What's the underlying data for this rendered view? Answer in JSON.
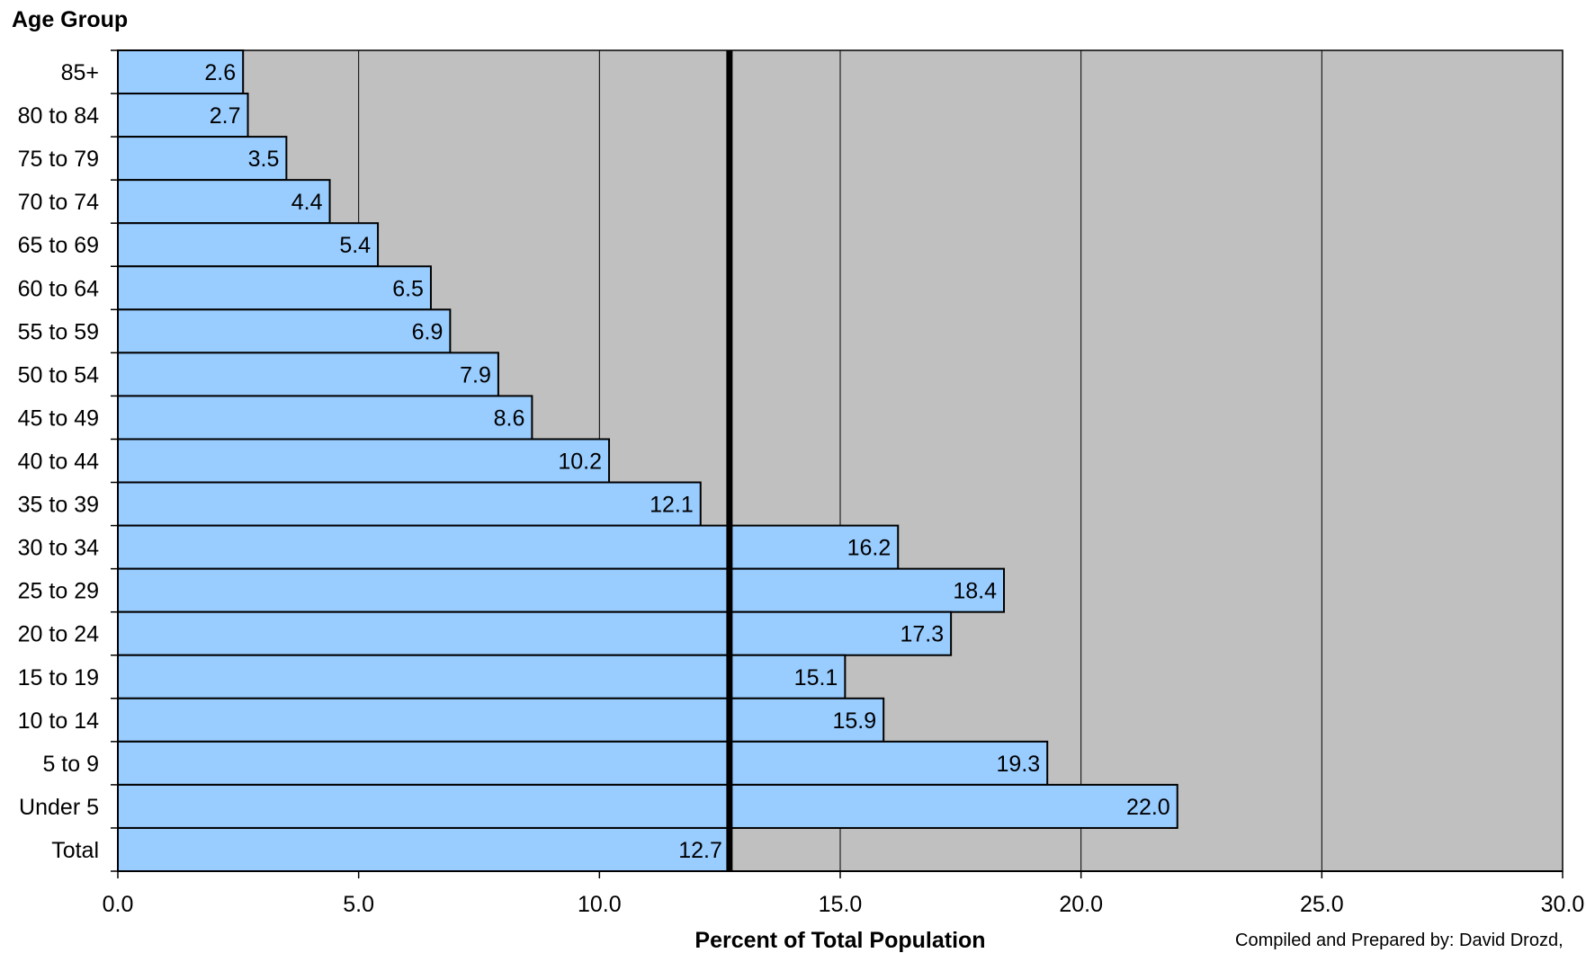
{
  "chart_data": {
    "type": "bar",
    "orientation": "horizontal",
    "ylabel": "Age Group",
    "xlabel": "Percent of Total Population",
    "credit": "Compiled and Prepared by: David Drozd,",
    "categories": [
      "85+",
      "80 to 84",
      "75 to 79",
      "70 to 74",
      "65 to 69",
      "60 to 64",
      "55 to 59",
      "50 to 54",
      "45 to 49",
      "40 to 44",
      "35 to 39",
      "30 to 34",
      "25 to 29",
      "20 to 24",
      "15 to 19",
      "10 to 14",
      "5 to 9",
      "Under 5",
      "Total"
    ],
    "values": [
      2.6,
      2.7,
      3.5,
      4.4,
      5.4,
      6.5,
      6.9,
      7.9,
      8.6,
      10.2,
      12.1,
      16.2,
      18.4,
      17.3,
      15.1,
      15.9,
      19.3,
      22.0,
      12.7
    ],
    "value_labels": [
      "2.6",
      "2.7",
      "3.5",
      "4.4",
      "5.4",
      "6.5",
      "6.9",
      "7.9",
      "8.6",
      "10.2",
      "12.1",
      "16.2",
      "18.4",
      "17.3",
      "15.1",
      "15.9",
      "19.3",
      "22.0",
      "12.7"
    ],
    "xlim": [
      0,
      30
    ],
    "x_ticks": [
      0,
      5,
      10,
      15,
      20,
      25,
      30
    ],
    "x_tick_labels": [
      "0.0",
      "5.0",
      "10.0",
      "15.0",
      "20.0",
      "25.0",
      "30.0"
    ],
    "reference_line": 12.7,
    "grid": "vertical",
    "colors": {
      "bar": "#99ccff",
      "plot_background": "#c0c0c0",
      "reference_line": "#000000"
    }
  }
}
